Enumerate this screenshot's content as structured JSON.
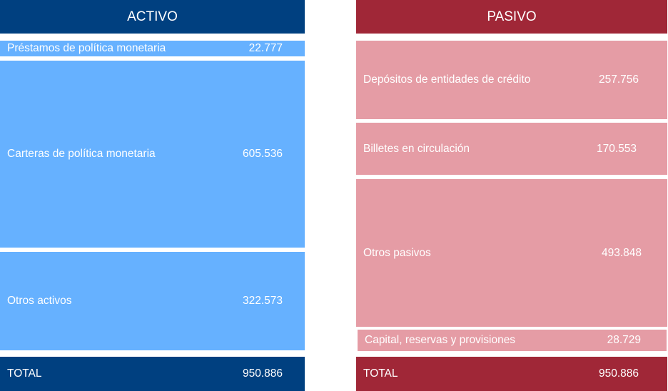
{
  "activo": {
    "title": "ACTIVO",
    "items": [
      {
        "label": "Préstamos de política monetaria",
        "value": "22.777"
      },
      {
        "label": "Carteras de política monetaria",
        "value": "605.536"
      },
      {
        "label": "Otros activos",
        "value": "322.573"
      }
    ],
    "total_label": "TOTAL",
    "total_value": "950.886"
  },
  "pasivo": {
    "title": "PASIVO",
    "items": [
      {
        "label": "Depósitos de entidades de crédito",
        "value": "257.756"
      },
      {
        "label": "Billetes en circulación",
        "value": "170.553"
      },
      {
        "label": "Otros pasivos",
        "value": "493.848"
      },
      {
        "label": "Capital, reservas y provisiones",
        "value": "28.729"
      }
    ],
    "total_label": "TOTAL",
    "total_value": "950.886"
  },
  "colors": {
    "activo_header": "#004080",
    "activo_item": "#66B1FF",
    "pasivo_header": "#A02737",
    "pasivo_item": "#E59CA5"
  }
}
